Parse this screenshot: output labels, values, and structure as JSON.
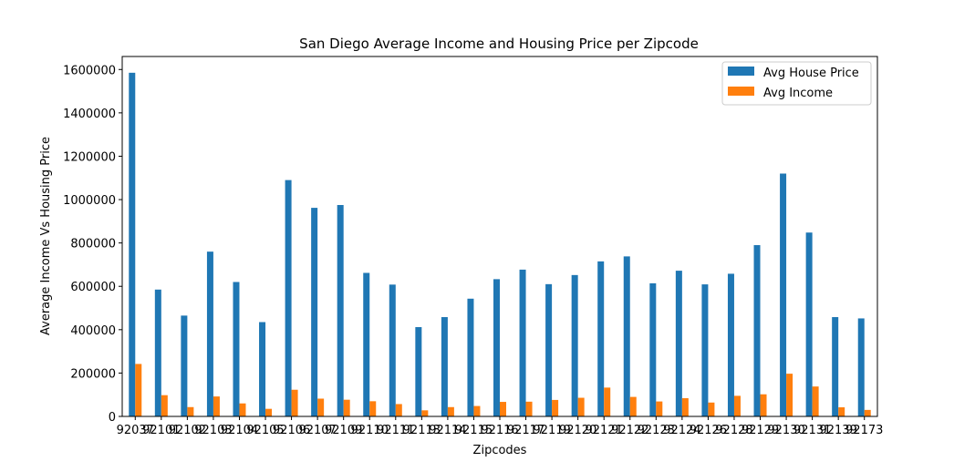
{
  "chart_data": {
    "type": "bar",
    "title": "San Diego Average Income and Housing Price per Zipcode",
    "xlabel": "Zipcodes",
    "ylabel": "Average Income Vs Housing Price",
    "ylim": [
      0,
      1660000
    ],
    "yticks": [
      0,
      200000,
      400000,
      600000,
      800000,
      1000000,
      1200000,
      1400000,
      1600000
    ],
    "ytick_labels": [
      "0",
      "200000",
      "400000",
      "600000",
      "800000",
      "1000000",
      "1200000",
      "1400000",
      "1600000"
    ],
    "legend_position": "top-right",
    "grid": false,
    "categories": [
      "92037",
      "92101",
      "92102",
      "92103",
      "92104",
      "92105",
      "92106",
      "92107",
      "92109",
      "92110",
      "92111",
      "92113",
      "92114",
      "92115",
      "92116",
      "92117",
      "92119",
      "92120",
      "92121",
      "92122",
      "92123",
      "92124",
      "92126",
      "92128",
      "92129",
      "92130",
      "92131",
      "92139",
      "92173"
    ],
    "series": [
      {
        "name": "Avg House Price",
        "color": "#1f77b4",
        "values": [
          1585000,
          585000,
          465000,
          760000,
          620000,
          435000,
          1090000,
          962000,
          975000,
          662000,
          608000,
          412000,
          458000,
          543000,
          633000,
          677000,
          610000,
          652000,
          715000,
          738000,
          614000,
          672000,
          609000,
          658000,
          790000,
          1120000,
          848000,
          458000,
          452000
        ]
      },
      {
        "name": "Avg Income",
        "color": "#ff7f0e",
        "values": [
          242000,
          98000,
          43000,
          92000,
          60000,
          35000,
          123000,
          82000,
          77000,
          70000,
          57000,
          28000,
          43000,
          48000,
          67000,
          68000,
          76000,
          86000,
          133000,
          90000,
          69000,
          84000,
          64000,
          95000,
          102000,
          197000,
          138000,
          42000,
          30000
        ]
      }
    ]
  }
}
